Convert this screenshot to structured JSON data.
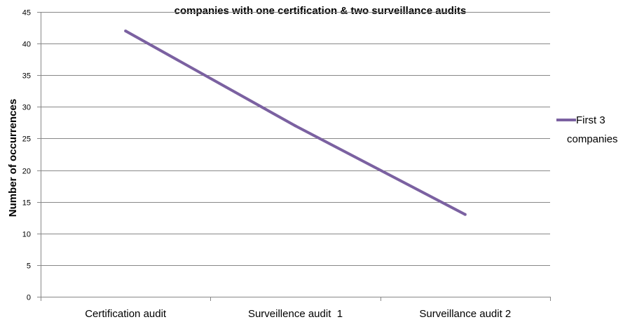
{
  "chart_data": {
    "type": "line",
    "title": "companies with one certification & two surveillance audits",
    "xlabel": "",
    "ylabel": "Number of occurrences",
    "categories": [
      "Certification audit",
      "Surveillence audit  1",
      "Surveillance audit 2"
    ],
    "series": [
      {
        "name_lines": [
          "First 3",
          "companies"
        ],
        "values": [
          42,
          27,
          13
        ],
        "color": "#7b61a1"
      }
    ],
    "ylim": [
      0,
      45
    ],
    "yticks": [
      0,
      5,
      10,
      15,
      20,
      25,
      30,
      35,
      40,
      45
    ],
    "grid": true,
    "gridline_color": "#888888",
    "legend_position": "right"
  }
}
